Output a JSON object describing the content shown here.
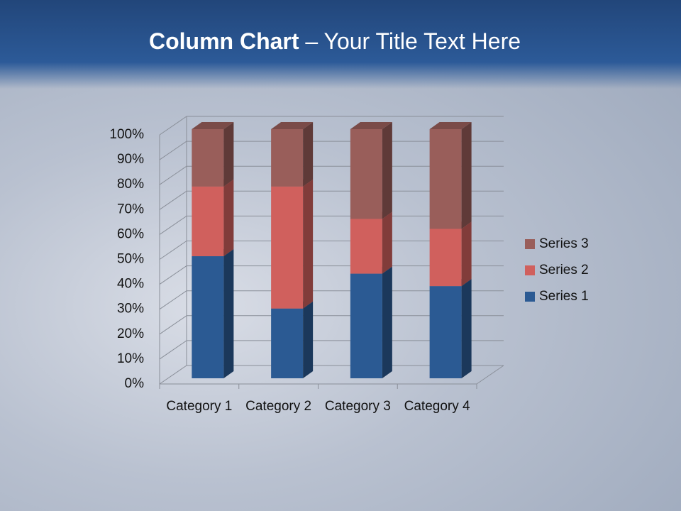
{
  "chart_data": {
    "type": "stacked_percent_bar_3d",
    "title_bold": "Column Chart",
    "title": "– Your Title Text Here",
    "categories": [
      "Category 1",
      "Category 2",
      "Category 3",
      "Category 4"
    ],
    "series": [
      {
        "name": "Series 1",
        "color": "#2b5a93",
        "values": [
          49,
          28,
          42,
          37
        ]
      },
      {
        "name": "Series 2",
        "color": "#d0605d",
        "values": [
          28,
          49,
          22,
          23
        ]
      },
      {
        "name": "Series 3",
        "color": "#995e5a",
        "values": [
          23,
          23,
          36,
          40
        ]
      }
    ],
    "ylim": [
      0,
      100
    ],
    "yticks": [
      {
        "value": 0,
        "label": "0%"
      },
      {
        "value": 10,
        "label": "10%"
      },
      {
        "value": 20,
        "label": "20%"
      },
      {
        "value": 30,
        "label": "30%"
      },
      {
        "value": 40,
        "label": "40%"
      },
      {
        "value": 50,
        "label": "50%"
      },
      {
        "value": 60,
        "label": "60%"
      },
      {
        "value": 70,
        "label": "70%"
      },
      {
        "value": 80,
        "label": "80%"
      },
      {
        "value": 90,
        "label": "90%"
      },
      {
        "value": 100,
        "label": "100%"
      }
    ],
    "grid": true,
    "legend": "right"
  }
}
